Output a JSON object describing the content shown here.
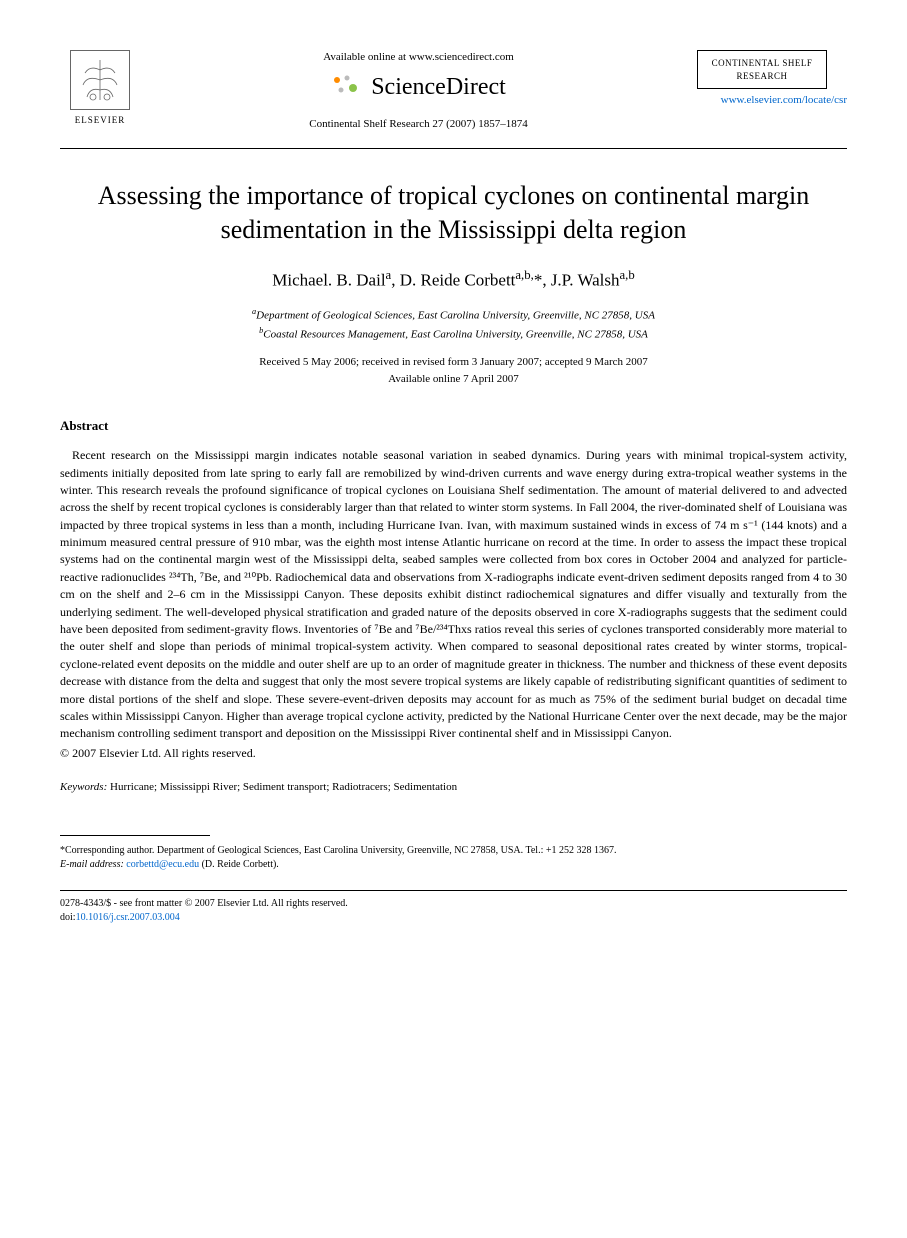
{
  "header": {
    "elsevier_label": "ELSEVIER",
    "available_online": "Available online at www.sciencedirect.com",
    "sciencedirect": "ScienceDirect",
    "citation": "Continental Shelf Research 27 (2007) 1857–1874",
    "journal_name_line1": "CONTINENTAL SHELF",
    "journal_name_line2": "RESEARCH",
    "journal_url": "www.elsevier.com/locate/csr"
  },
  "title": "Assessing the importance of tropical cyclones on continental margin sedimentation in the Mississippi delta region",
  "authors_html": "Michael. B. Dail<sup>a</sup>, D. Reide Corbett<sup>a,b,</sup>*, J.P. Walsh<sup>a,b</sup>",
  "affiliations": {
    "a": "Department of Geological Sciences, East Carolina University, Greenville, NC 27858, USA",
    "b": "Coastal Resources Management, East Carolina University, Greenville, NC 27858, USA"
  },
  "dates": {
    "received": "Received 5 May 2006; received in revised form 3 January 2007; accepted 9 March 2007",
    "online": "Available online 7 April 2007"
  },
  "abstract_heading": "Abstract",
  "abstract": "Recent research on the Mississippi margin indicates notable seasonal variation in seabed dynamics. During years with minimal tropical-system activity, sediments initially deposited from late spring to early fall are remobilized by wind-driven currents and wave energy during extra-tropical weather systems in the winter. This research reveals the profound significance of tropical cyclones on Louisiana Shelf sedimentation. The amount of material delivered to and advected across the shelf by recent tropical cyclones is considerably larger than that related to winter storm systems. In Fall 2004, the river-dominated shelf of Louisiana was impacted by three tropical systems in less than a month, including Hurricane Ivan. Ivan, with maximum sustained winds in excess of 74 m s⁻¹ (144 knots) and a minimum measured central pressure of 910 mbar, was the eighth most intense Atlantic hurricane on record at the time. In order to assess the impact these tropical systems had on the continental margin west of the Mississippi delta, seabed samples were collected from box cores in October 2004 and analyzed for particle-reactive radionuclides ²³⁴Th, ⁷Be, and ²¹⁰Pb. Radiochemical data and observations from X-radiographs indicate event-driven sediment deposits ranged from 4 to 30 cm on the shelf and 2–6 cm in the Mississippi Canyon. These deposits exhibit distinct radiochemical signatures and differ visually and texturally from the underlying sediment. The well-developed physical stratification and graded nature of the deposits observed in core X-radiographs suggests that the sediment could have been deposited from sediment-gravity flows. Inventories of ⁷Be and ⁷Be/²³⁴Thxs ratios reveal this series of cyclones transported considerably more material to the outer shelf and slope than periods of minimal tropical-system activity. When compared to seasonal depositional rates created by winter storms, tropical-cyclone-related event deposits on the middle and outer shelf are up to an order of magnitude greater in thickness. The number and thickness of these event deposits decrease with distance from the delta and suggest that only the most severe tropical systems are likely capable of redistributing significant quantities of sediment to more distal portions of the shelf and slope. These severe-event-driven deposits may account for as much as 75% of the sediment burial budget on decadal time scales within Mississippi Canyon. Higher than average tropical cyclone activity, predicted by the National Hurricane Center over the next decade, may be the major mechanism controlling sediment transport and deposition on the Mississippi River continental shelf and in Mississippi Canyon.",
  "copyright": "© 2007 Elsevier Ltd. All rights reserved.",
  "keywords_label": "Keywords:",
  "keywords": "Hurricane; Mississippi River; Sediment transport; Radiotracers; Sedimentation",
  "footnote": {
    "corresponding": "*Corresponding author. Department of Geological Sciences, East Carolina University, Greenville, NC 27858, USA. Tel.: +1 252 328 1367.",
    "email_label": "E-mail address:",
    "email": "corbettd@ecu.edu",
    "email_name": "(D. Reide Corbett)."
  },
  "bottom": {
    "issn": "0278-4343/$ - see front matter © 2007 Elsevier Ltd. All rights reserved.",
    "doi_label": "doi:",
    "doi": "10.1016/j.csr.2007.03.004"
  },
  "colors": {
    "text": "#000000",
    "link": "#0066cc",
    "background": "#ffffff",
    "sd_orange": "#ff8c00",
    "sd_green": "#8bc34a"
  }
}
